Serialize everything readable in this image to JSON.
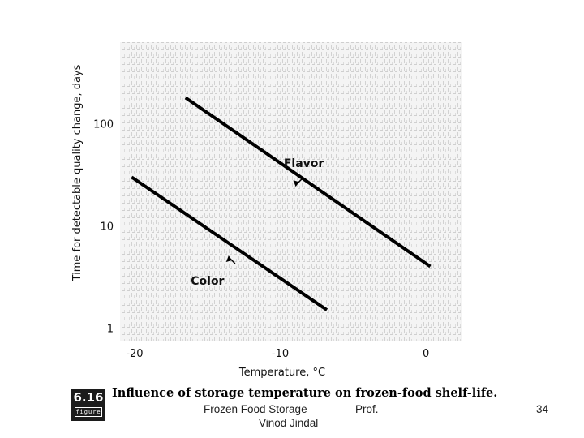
{
  "chart_data": {
    "type": "line",
    "x_ticks": [
      "-20",
      "-10",
      "0"
    ],
    "y_ticks": [
      "100",
      "10",
      "1"
    ],
    "xlabel": "Temperature, °C",
    "ylabel": "Time for detectable quality change, days",
    "xlim": [
      -21,
      2.5
    ],
    "ylim": [
      0.75,
      630
    ],
    "y_scale": "log",
    "grid": false,
    "series": [
      {
        "name": "Flavor",
        "x": [
          -16.5,
          0.3
        ],
        "y": [
          180,
          4.0
        ]
      },
      {
        "name": "Color",
        "x": [
          -20.2,
          -6.8
        ],
        "y": [
          30,
          1.5
        ]
      }
    ]
  },
  "figure": {
    "number": "6.16",
    "word": "figure",
    "caption": "Influence of storage temperature on frozen-food shelf-life."
  },
  "footer": {
    "title": "Frozen Food Storage",
    "author_prefix": "Prof.",
    "author_name": "Vinod Jindal",
    "page_number": "34"
  }
}
